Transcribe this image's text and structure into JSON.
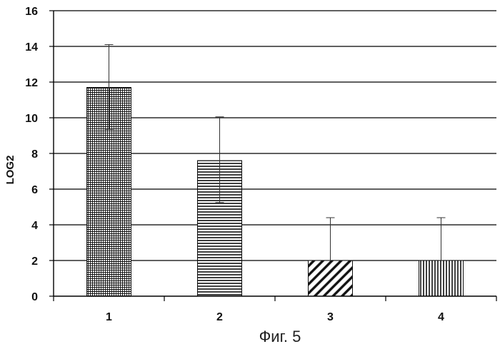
{
  "chart_data": {
    "type": "bar",
    "categories": [
      "1",
      "2",
      "3",
      "4"
    ],
    "values": [
      11.7,
      7.6,
      2.0,
      2.0
    ],
    "error_high": [
      14.1,
      10.05,
      4.4,
      4.4
    ],
    "error_low": [
      9.35,
      5.25
    ],
    "bar_patterns": [
      "crosshatch",
      "horizontal-lines",
      "diagonal-lines",
      "vertical-lines"
    ],
    "title": "",
    "xlabel": "",
    "ylabel": "LOG2",
    "ylim": [
      0,
      16
    ],
    "yticks": [
      0,
      2,
      4,
      6,
      8,
      10,
      12,
      14,
      16
    ],
    "grid": true,
    "legend": "none",
    "colors": {
      "bars": "#111111",
      "grid": "#000000",
      "background": "#ffffff"
    }
  },
  "caption": "Фиг. 5"
}
